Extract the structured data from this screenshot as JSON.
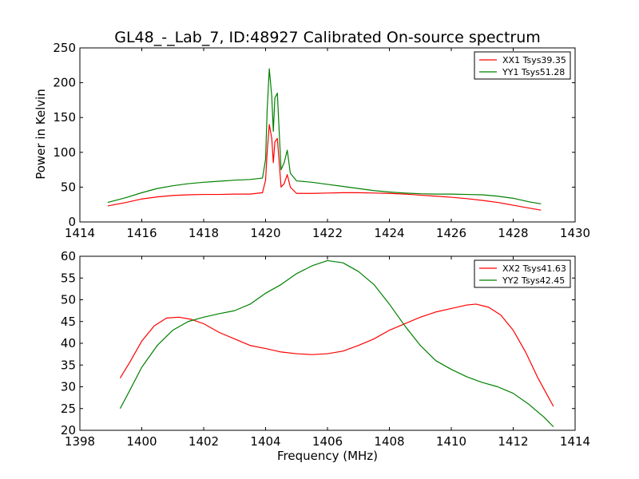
{
  "chart_data": [
    {
      "type": "line",
      "title": "GL48_-_Lab_7, ID:48927 Calibrated On-source spectrum",
      "xlabel": "",
      "ylabel": "Power in Kelvin",
      "xlim": [
        1414,
        1430
      ],
      "ylim": [
        0,
        250
      ],
      "xticks": [
        "1414",
        "1416",
        "1418",
        "1420",
        "1422",
        "1424",
        "1426",
        "1428",
        "1430"
      ],
      "yticks": [
        "0",
        "50",
        "100",
        "150",
        "200",
        "250"
      ],
      "grid": false,
      "legend_position": "top-right",
      "series": [
        {
          "name": "XX1 Tsys39.35",
          "color": "#ff0000",
          "x": [
            1414.9,
            1415.5,
            1416.0,
            1416.5,
            1417.0,
            1417.5,
            1418.0,
            1418.5,
            1419.0,
            1419.5,
            1419.9,
            1420.0,
            1420.05,
            1420.12,
            1420.2,
            1420.25,
            1420.3,
            1420.38,
            1420.45,
            1420.5,
            1420.6,
            1420.7,
            1420.8,
            1421.0,
            1421.5,
            1422.0,
            1422.5,
            1423.0,
            1423.5,
            1424.0,
            1424.5,
            1425.0,
            1425.5,
            1426.0,
            1426.5,
            1427.0,
            1427.5,
            1428.0,
            1428.5,
            1428.9
          ],
          "y": [
            23,
            28,
            33,
            36,
            38,
            39,
            39.5,
            39.5,
            40,
            40,
            42,
            60,
            100,
            140,
            120,
            85,
            115,
            120,
            80,
            50,
            55,
            68,
            50,
            41,
            41,
            41.5,
            42,
            42,
            41.5,
            41,
            40,
            38.5,
            37,
            35.5,
            33.5,
            31,
            28,
            24,
            20,
            17
          ]
        },
        {
          "name": "YY1 Tsys51.28",
          "color": "#008000",
          "x": [
            1414.9,
            1415.5,
            1416.0,
            1416.5,
            1417.0,
            1417.5,
            1418.0,
            1418.5,
            1419.0,
            1419.5,
            1419.9,
            1420.0,
            1420.05,
            1420.12,
            1420.2,
            1420.25,
            1420.3,
            1420.38,
            1420.45,
            1420.5,
            1420.6,
            1420.7,
            1420.8,
            1421.0,
            1421.5,
            1422.0,
            1422.5,
            1423.0,
            1423.5,
            1424.0,
            1424.5,
            1425.0,
            1425.5,
            1426.0,
            1426.5,
            1427.0,
            1427.5,
            1428.0,
            1428.5,
            1428.9
          ],
          "y": [
            28,
            35,
            42,
            48,
            52,
            55,
            57,
            58.5,
            60,
            61,
            63,
            90,
            160,
            220,
            180,
            130,
            178,
            185,
            120,
            75,
            85,
            103,
            70,
            59,
            57,
            54,
            51,
            48,
            45,
            43,
            41.5,
            40.5,
            40,
            40,
            39.5,
            39,
            37,
            34,
            29,
            26
          ]
        }
      ]
    },
    {
      "type": "line",
      "title": "",
      "xlabel": "Frequency (MHz)",
      "ylabel": "",
      "xlim": [
        1398,
        1414
      ],
      "ylim": [
        20,
        60
      ],
      "xticks": [
        "1398",
        "1400",
        "1402",
        "1404",
        "1406",
        "1408",
        "1410",
        "1412",
        "1414"
      ],
      "yticks": [
        "20",
        "25",
        "30",
        "35",
        "40",
        "45",
        "50",
        "55",
        "60"
      ],
      "grid": false,
      "legend_position": "top-right",
      "series": [
        {
          "name": "XX2 Tsys41.63",
          "color": "#ff0000",
          "x": [
            1399.3,
            1399.6,
            1400.0,
            1400.4,
            1400.8,
            1401.2,
            1401.6,
            1402.0,
            1402.5,
            1403.0,
            1403.5,
            1404.0,
            1404.5,
            1405.0,
            1405.5,
            1406.0,
            1406.5,
            1407.0,
            1407.5,
            1408.0,
            1408.5,
            1409.0,
            1409.5,
            1410.0,
            1410.5,
            1410.8,
            1411.2,
            1411.6,
            1412.0,
            1412.4,
            1412.8,
            1413.3
          ],
          "y": [
            32,
            35.5,
            40.5,
            44,
            45.8,
            46,
            45.5,
            44.5,
            42.5,
            41,
            39.5,
            38.8,
            38,
            37.6,
            37.4,
            37.6,
            38.2,
            39.5,
            41,
            43,
            44.5,
            46,
            47.2,
            48,
            48.8,
            49,
            48.3,
            46.5,
            43,
            38,
            32,
            25.5
          ]
        },
        {
          "name": "YY2 Tsys42.45",
          "color": "#008000",
          "x": [
            1399.3,
            1399.6,
            1400.0,
            1400.5,
            1401.0,
            1401.5,
            1402.0,
            1402.5,
            1403.0,
            1403.5,
            1404.0,
            1404.5,
            1405.0,
            1405.5,
            1406.0,
            1406.5,
            1407.0,
            1407.5,
            1408.0,
            1408.5,
            1409.0,
            1409.5,
            1410.0,
            1410.5,
            1411.0,
            1411.5,
            1412.0,
            1412.5,
            1413.0,
            1413.3
          ],
          "y": [
            25,
            29,
            34.5,
            39.5,
            43,
            45,
            46,
            46.8,
            47.5,
            49,
            51.5,
            53.5,
            56,
            57.8,
            59,
            58.5,
            56.5,
            53.5,
            49,
            44,
            39.5,
            36,
            34,
            32.3,
            31,
            30,
            28.5,
            26,
            23,
            20.8
          ]
        }
      ]
    }
  ]
}
